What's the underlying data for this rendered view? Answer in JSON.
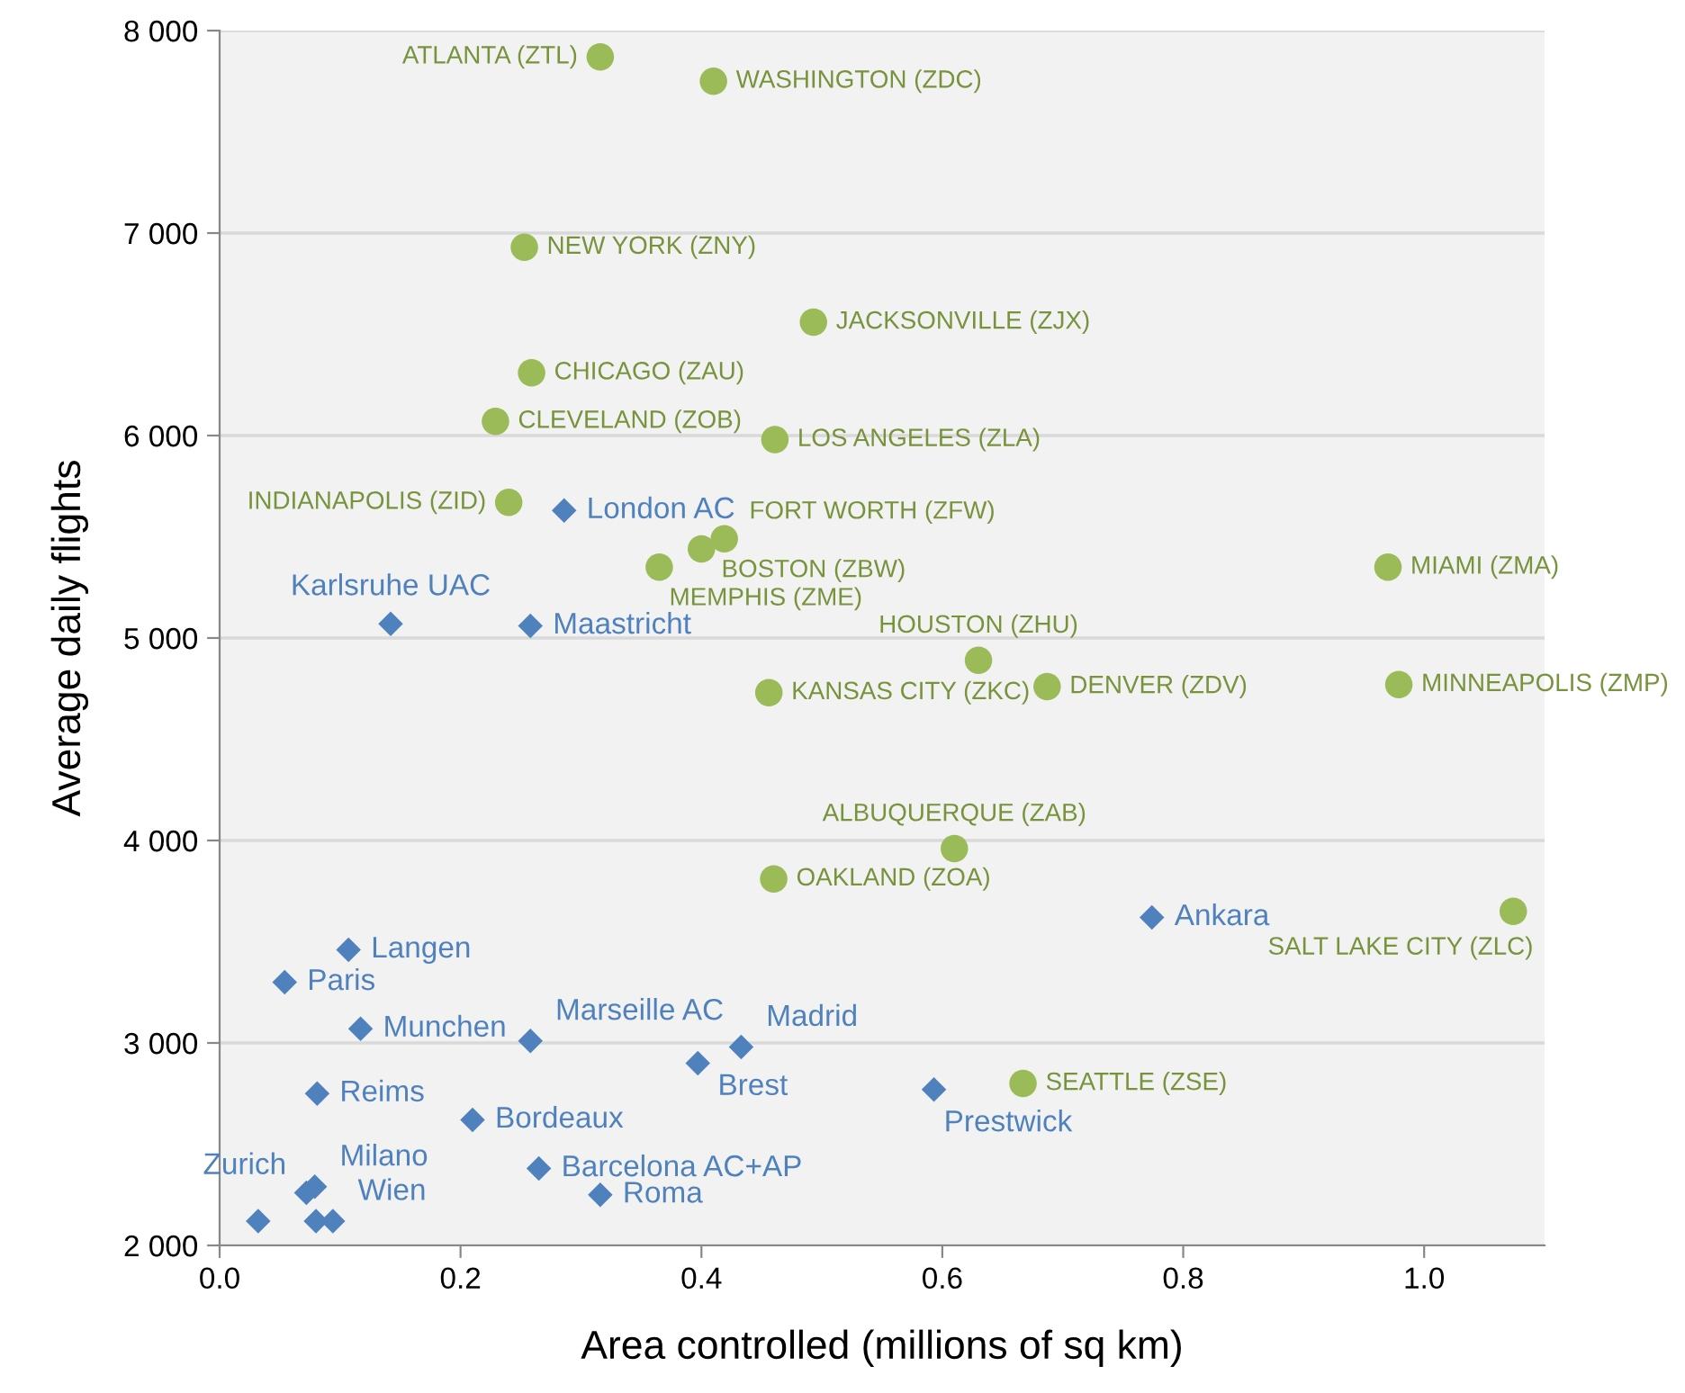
{
  "chart_data": {
    "type": "scatter",
    "xlabel": "Area controlled (millions of sq km)",
    "ylabel": "Average daily flights",
    "xlim": [
      0,
      1.1
    ],
    "xticks": [
      {
        "value": 0,
        "label": "0.0"
      },
      {
        "value": 0.2,
        "label": "0.2"
      },
      {
        "value": 0.4,
        "label": "0.4"
      },
      {
        "value": 0.6,
        "label": "0.6"
      },
      {
        "value": 0.8,
        "label": "0.8"
      },
      {
        "value": 1.0,
        "label": "1.0"
      }
    ],
    "ylim": [
      2000,
      8000
    ],
    "yticks": [
      {
        "value": 2000,
        "label": "2 000"
      },
      {
        "value": 3000,
        "label": "3 000"
      },
      {
        "value": 4000,
        "label": "4 000"
      },
      {
        "value": 5000,
        "label": "5 000"
      },
      {
        "value": 6000,
        "label": "6 000"
      },
      {
        "value": 7000,
        "label": "7 000"
      },
      {
        "value": 8000,
        "label": "8 000"
      }
    ],
    "grid": "y",
    "series": [
      {
        "color": "#9bbb59",
        "marker": "circle",
        "x": [
          0.316,
          0.41,
          0.253,
          0.493,
          0.259,
          0.229,
          0.461,
          0.24,
          0.419,
          0.4,
          0.365,
          0.97,
          0.63,
          0.456,
          0.687,
          0.979,
          0.61,
          0.46,
          1.074,
          0.667
        ],
        "values": [
          7870,
          7750,
          6930,
          6560,
          6310,
          6070,
          5980,
          5670,
          5490,
          5440,
          5350,
          5350,
          4890,
          4730,
          4760,
          4770,
          3960,
          3810,
          3650,
          2800
        ],
        "value_labels": [
          "ATLANTA (ZTL)",
          "WASHINGTON (ZDC)",
          "NEW YORK (ZNY)",
          "JACKSONVILLE (ZJX)",
          "CHICAGO (ZAU)",
          "CLEVELAND (ZOB)",
          "LOS ANGELES (ZLA)",
          "INDIANAPOLIS (ZID)",
          "FORT WORTH (ZFW)",
          "BOSTON (ZBW)",
          "MEMPHIS (ZME)",
          "MIAMI (ZMA)",
          "HOUSTON (ZHU)",
          "KANSAS CITY (ZKC)",
          "DENVER (ZDV)",
          "MINNEAPOLIS (ZMP)",
          "ALBUQUERQUE (ZAB)",
          "OAKLAND (ZOA)",
          "SALT LAKE CITY (ZLC)",
          "SEATTLE (ZSE)"
        ]
      },
      {
        "color": "#4f81bd",
        "marker": "diamond",
        "x": [
          0.286,
          0.142,
          0.258,
          0.774,
          0.593,
          0.433,
          0.397,
          0.258,
          0.117,
          0.107,
          0.054,
          0.081,
          0.21,
          0.265,
          0.316,
          0.072,
          0.079,
          0.032,
          0.08,
          0.094
        ],
        "values": [
          5630,
          5070,
          5060,
          3620,
          2770,
          2980,
          2900,
          3010,
          3070,
          3460,
          3300,
          2750,
          2620,
          2380,
          2250,
          2260,
          2290,
          2120,
          2120,
          2120
        ],
        "value_labels": [
          "London AC",
          "Karlsruhe UAC",
          "Maastricht",
          "Ankara",
          "Prestwick",
          "Madrid",
          "Brest",
          "Marseille AC",
          "Munchen",
          "Langen",
          "Paris",
          "Reims",
          "Bordeaux",
          "Barcelona AC+AP",
          "Roma",
          "Zurich",
          "Milano",
          null,
          null,
          "Wien"
        ]
      }
    ]
  }
}
